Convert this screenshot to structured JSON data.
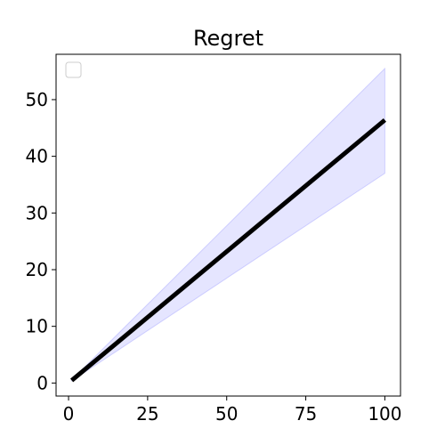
{
  "chart_data": {
    "type": "line",
    "title": "Regret",
    "xlabel": "",
    "ylabel": "",
    "xlim": [
      -3.95,
      104.95
    ],
    "ylim": [
      -2.3,
      58.0
    ],
    "xticks": [
      0,
      25,
      50,
      75,
      100
    ],
    "yticks": [
      0,
      10,
      20,
      30,
      40,
      50
    ],
    "grid": false,
    "legend": {
      "placement": "top-left",
      "entries": []
    },
    "series": [
      {
        "x": [
          1,
          100
        ],
        "y": [
          0.46,
          46.4
        ],
        "lower": [
          0.37,
          37.0
        ],
        "upper": [
          0.56,
          55.5
        ],
        "color": "#000000",
        "band_color": "#0000ff"
      }
    ]
  }
}
